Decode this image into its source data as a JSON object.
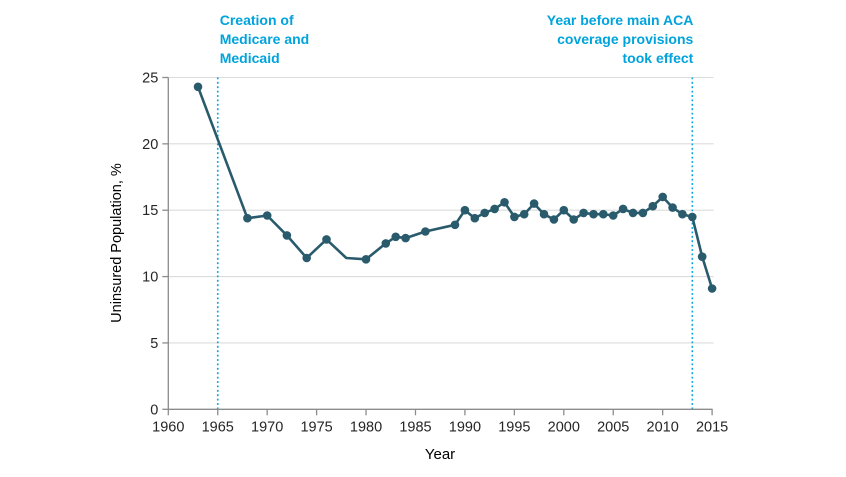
{
  "figure": {
    "background_color": "#ffffff",
    "x_axis_title": "Year",
    "y_axis_title": "Uninsured Population, %"
  },
  "chart_data": {
    "type": "line",
    "title": "",
    "xlabel": "Year",
    "ylabel": "Uninsured Population, %",
    "xlim": [
      1960,
      2015
    ],
    "ylim": [
      0,
      25
    ],
    "x_ticks": [
      1960,
      1965,
      1970,
      1975,
      1980,
      1985,
      1990,
      1995,
      2000,
      2005,
      2010,
      2015
    ],
    "y_ticks": [
      0,
      5,
      10,
      15,
      20,
      25
    ],
    "grid": "horizontal",
    "legend": "none",
    "series": [
      {
        "name": "Uninsured population, %",
        "x": [
          1963,
          1968,
          1970,
          1972,
          1974,
          1976,
          1978,
          1980,
          1982,
          1983,
          1984,
          1986,
          1989,
          1990,
          1991,
          1992,
          1993,
          1994,
          1995,
          1996,
          1997,
          1998,
          1999,
          2000,
          2001,
          2002,
          2003,
          2004,
          2005,
          2006,
          2007,
          2008,
          2009,
          2010,
          2011,
          2012,
          2013,
          2014,
          2015
        ],
        "y": [
          24.3,
          14.4,
          14.6,
          13.1,
          11.4,
          12.8,
          11.4,
          11.3,
          12.5,
          13.0,
          12.9,
          13.4,
          13.9,
          15.0,
          14.4,
          14.8,
          15.1,
          15.6,
          14.5,
          14.7,
          15.5,
          14.7,
          14.3,
          15.0,
          14.3,
          14.8,
          14.7,
          14.7,
          14.6,
          15.1,
          14.8,
          14.8,
          15.3,
          16.0,
          15.2,
          14.7,
          14.5,
          11.5,
          9.1
        ],
        "no_marker_x": [
          1978
        ]
      }
    ],
    "reference_lines": [
      {
        "x": 1965,
        "label_lines": [
          "Creation of",
          "Medicare and",
          "Medicaid"
        ],
        "label_align": "left"
      },
      {
        "x": 2013,
        "label_lines": [
          "Year before main ACA",
          "coverage provisions",
          "took effect"
        ],
        "label_align": "right"
      }
    ],
    "colors": {
      "series_line": "#2a5b6c",
      "series_marker": "#2a5b6c",
      "reference_line": "#00a3dc",
      "annotation_text": "#00a3dc",
      "gridline": "#dcdcdc",
      "axis_line": "#8c8c8c",
      "tick_label": "#262626",
      "axis_title": "#262626"
    }
  }
}
